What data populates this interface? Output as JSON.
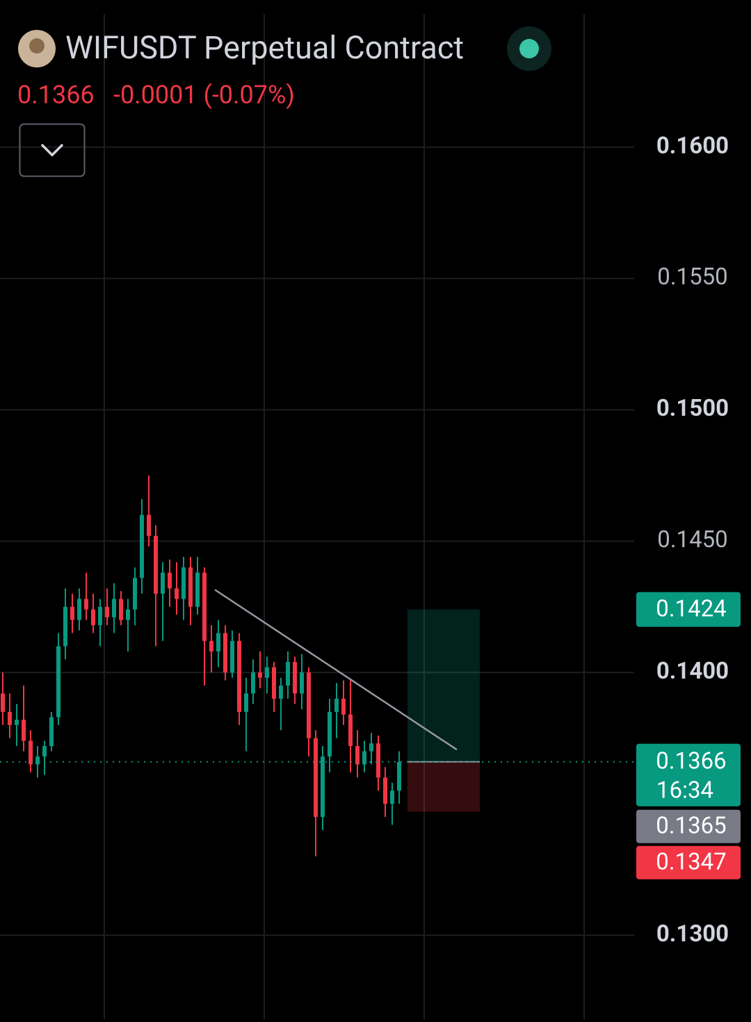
{
  "chart_data": {
    "type": "candlestick",
    "title": "WIFUSDT Perpetual Contract",
    "last_price": 0.1366,
    "change": "-0.0001 (-0.07%)",
    "x": [
      0,
      1,
      2,
      3,
      4,
      5,
      6,
      7,
      8,
      9,
      10,
      11,
      12,
      13,
      14,
      15,
      16,
      17,
      18,
      19,
      20,
      21,
      22,
      23,
      24,
      25,
      26,
      27,
      28,
      29,
      30,
      31,
      32,
      33,
      34,
      35,
      36,
      37,
      38,
      39,
      40,
      41,
      42,
      43,
      44,
      45,
      46,
      47,
      48,
      49,
      50,
      51,
      52,
      53,
      54,
      55,
      56,
      57
    ],
    "open": [
      0.1392,
      0.1385,
      0.138,
      0.1382,
      0.1374,
      0.1365,
      0.1368,
      0.1372,
      0.1383,
      0.141,
      0.1425,
      0.142,
      0.1428,
      0.1424,
      0.1418,
      0.1425,
      0.1421,
      0.1428,
      0.142,
      0.1424,
      0.1436,
      0.146,
      0.1452,
      0.143,
      0.1438,
      0.1432,
      0.1428,
      0.144,
      0.1425,
      0.1438,
      0.1412,
      0.1408,
      0.1415,
      0.14,
      0.1412,
      0.1385,
      0.1392,
      0.14,
      0.1398,
      0.1402,
      0.139,
      0.1395,
      0.1404,
      0.1392,
      0.14,
      0.1375,
      0.1345,
      0.1368,
      0.1385,
      0.139,
      0.1384,
      0.1372,
      0.1365,
      0.137,
      0.1373,
      0.136,
      0.135,
      0.1355
    ],
    "high": [
      0.14,
      0.1392,
      0.1388,
      0.1395,
      0.1378,
      0.1372,
      0.1374,
      0.1385,
      0.1415,
      0.1432,
      0.143,
      0.1432,
      0.1438,
      0.143,
      0.1428,
      0.1432,
      0.1434,
      0.1431,
      0.1428,
      0.144,
      0.1466,
      0.1475,
      0.1456,
      0.1442,
      0.1443,
      0.1442,
      0.1444,
      0.1444,
      0.1444,
      0.144,
      0.1418,
      0.142,
      0.1418,
      0.1416,
      0.1415,
      0.1398,
      0.1405,
      0.1408,
      0.1406,
      0.1404,
      0.1398,
      0.1408,
      0.1406,
      0.1407,
      0.1402,
      0.1378,
      0.1372,
      0.139,
      0.1396,
      0.1397,
      0.1397,
      0.1378,
      0.1374,
      0.1377,
      0.1376,
      0.1364,
      0.1358,
      0.137
    ],
    "low": [
      0.138,
      0.1375,
      0.1372,
      0.137,
      0.1362,
      0.136,
      0.1361,
      0.137,
      0.138,
      0.1405,
      0.1415,
      0.1416,
      0.142,
      0.1415,
      0.141,
      0.1418,
      0.1415,
      0.1418,
      0.1408,
      0.1418,
      0.143,
      0.1448,
      0.141,
      0.1412,
      0.1425,
      0.1422,
      0.142,
      0.1418,
      0.1422,
      0.1395,
      0.14,
      0.1402,
      0.1397,
      0.1398,
      0.138,
      0.137,
      0.1388,
      0.1394,
      0.1392,
      0.1385,
      0.1378,
      0.139,
      0.1388,
      0.1386,
      0.1368,
      0.133,
      0.134,
      0.1362,
      0.1375,
      0.138,
      0.1362,
      0.136,
      0.1362,
      0.1365,
      0.1355,
      0.1345,
      0.1342,
      0.135
    ],
    "close": [
      0.1385,
      0.138,
      0.1382,
      0.1374,
      0.1365,
      0.1368,
      0.1372,
      0.1383,
      0.141,
      0.1425,
      0.142,
      0.1428,
      0.1424,
      0.1418,
      0.1425,
      0.1421,
      0.1428,
      0.142,
      0.1424,
      0.1436,
      0.146,
      0.1452,
      0.143,
      0.1438,
      0.1432,
      0.1428,
      0.144,
      0.1425,
      0.1438,
      0.1412,
      0.1408,
      0.1415,
      0.14,
      0.1412,
      0.1385,
      0.1392,
      0.14,
      0.1398,
      0.1402,
      0.139,
      0.1395,
      0.1404,
      0.1392,
      0.14,
      0.1375,
      0.1345,
      0.1368,
      0.1385,
      0.139,
      0.1384,
      0.1372,
      0.1365,
      0.137,
      0.1373,
      0.136,
      0.135,
      0.1355,
      0.1366
    ],
    "up_color": "#089981",
    "down_color": "#f23645",
    "xlim": [
      -0.4,
      90.8
    ],
    "xticks": [
      14.6,
      37.6,
      60.6,
      83.6
    ],
    "ylim": [
      0.1268,
      0.1656
    ],
    "yticks": [
      {
        "value": 0.16,
        "label": "0.1600"
      },
      {
        "value": 0.155,
        "label": "0.1550"
      },
      {
        "value": 0.15,
        "label": "0.1500"
      },
      {
        "value": 0.145,
        "label": "0.1450"
      },
      {
        "value": 0.14,
        "label": "0.1400"
      },
      {
        "value": 0.13,
        "label": "0.1300"
      }
    ],
    "grid": true,
    "trendline": {
      "x": [
        30.5,
        65.3
      ],
      "y": [
        0.14315,
        0.13706
      ]
    },
    "position": {
      "x": [
        58.2,
        68.6
      ],
      "target": 0.1424,
      "entry": 0.1366,
      "stop": 0.1347
    },
    "countdown": "16:34",
    "mark_price": 0.1365
  }
}
